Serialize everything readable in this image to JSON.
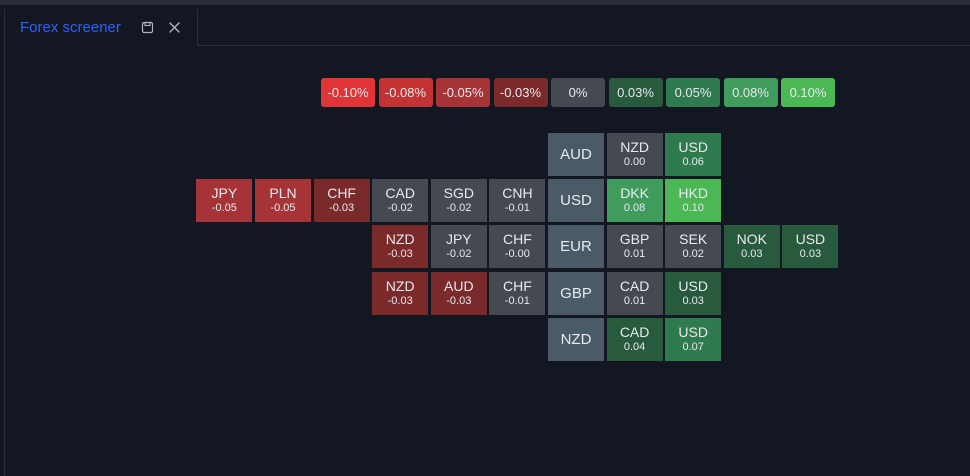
{
  "tab": {
    "title": "Forex screener",
    "save_icon": "save-icon",
    "close_icon": "close-icon"
  },
  "legend": [
    {
      "label": "-0.10%",
      "color": "#e03537"
    },
    {
      "label": "-0.08%",
      "color": "#c33334"
    },
    {
      "label": "-0.05%",
      "color": "#a63436"
    },
    {
      "label": "-0.03%",
      "color": "#7a2a2b"
    },
    {
      "label": "0%",
      "color": "#454a52"
    },
    {
      "label": "0.03%",
      "color": "#285a3e"
    },
    {
      "label": "0.05%",
      "color": "#2f7a4e"
    },
    {
      "label": "0.08%",
      "color": "#3f9c5c"
    },
    {
      "label": "0.10%",
      "color": "#4cb855"
    }
  ],
  "bases": [
    "AUD",
    "USD",
    "EUR",
    "GBP",
    "NZD"
  ],
  "rows": [
    {
      "base": "AUD",
      "left": [],
      "right": [
        {
          "sym": "NZD",
          "val": "0.00",
          "color": "#454a52"
        },
        {
          "sym": "USD",
          "val": "0.06",
          "color": "#2f7a4e"
        }
      ]
    },
    {
      "base": "USD",
      "left": [
        {
          "sym": "JPY",
          "val": "-0.05",
          "color": "#a63436"
        },
        {
          "sym": "PLN",
          "val": "-0.05",
          "color": "#a63436"
        },
        {
          "sym": "CHF",
          "val": "-0.03",
          "color": "#7a2a2b"
        },
        {
          "sym": "CAD",
          "val": "-0.02",
          "color": "#454a52"
        },
        {
          "sym": "SGD",
          "val": "-0.02",
          "color": "#454a52"
        },
        {
          "sym": "CNH",
          "val": "-0.01",
          "color": "#454a52"
        }
      ],
      "right": [
        {
          "sym": "DKK",
          "val": "0.08",
          "color": "#3f9c5c"
        },
        {
          "sym": "HKD",
          "val": "0.10",
          "color": "#4cb855"
        }
      ]
    },
    {
      "base": "EUR",
      "left": [
        {
          "sym": "NZD",
          "val": "-0.03",
          "color": "#7a2a2b"
        },
        {
          "sym": "JPY",
          "val": "-0.02",
          "color": "#454a52"
        },
        {
          "sym": "CHF",
          "val": "-0.00",
          "color": "#454a52"
        }
      ],
      "right": [
        {
          "sym": "GBP",
          "val": "0.01",
          "color": "#454a52"
        },
        {
          "sym": "SEK",
          "val": "0.02",
          "color": "#454a52"
        },
        {
          "sym": "NOK",
          "val": "0.03",
          "color": "#285a3e"
        },
        {
          "sym": "USD",
          "val": "0.03",
          "color": "#285a3e"
        }
      ]
    },
    {
      "base": "GBP",
      "left": [
        {
          "sym": "NZD",
          "val": "-0.03",
          "color": "#7a2a2b"
        },
        {
          "sym": "AUD",
          "val": "-0.03",
          "color": "#7a2a2b"
        },
        {
          "sym": "CHF",
          "val": "-0.01",
          "color": "#454a52"
        }
      ],
      "right": [
        {
          "sym": "CAD",
          "val": "0.01",
          "color": "#454a52"
        },
        {
          "sym": "USD",
          "val": "0.03",
          "color": "#285a3e"
        }
      ]
    },
    {
      "base": "NZD",
      "left": [],
      "right": [
        {
          "sym": "CAD",
          "val": "0.04",
          "color": "#285a3e"
        },
        {
          "sym": "USD",
          "val": "0.07",
          "color": "#2f7a4e"
        }
      ]
    }
  ]
}
